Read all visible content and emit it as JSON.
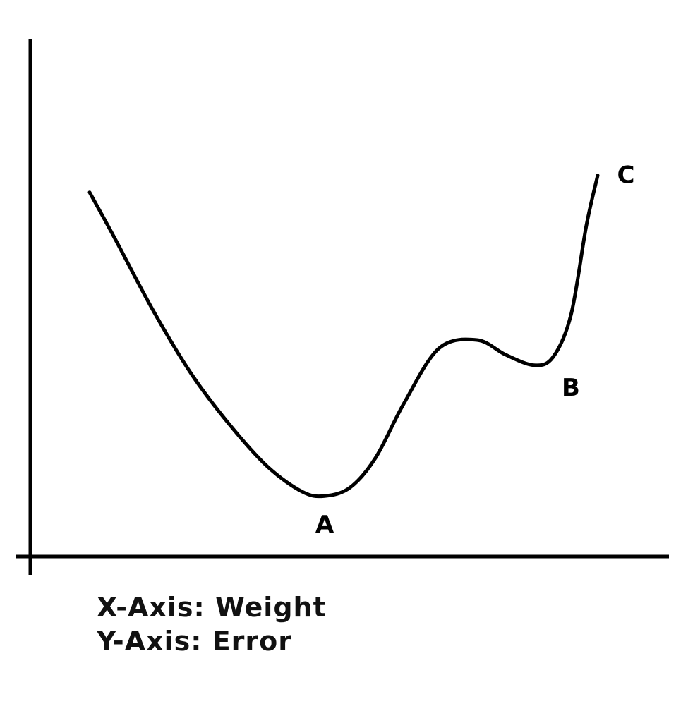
{
  "chart_data": {
    "type": "line",
    "title": "",
    "xlabel": "",
    "ylabel": "",
    "grid": false,
    "legend": "none",
    "line_color": "#000000",
    "series": [
      {
        "x": [
          0.0,
          0.4,
          1.0,
          1.6,
          2.2,
          2.8,
          3.35,
          3.7,
          4.1,
          4.5,
          4.95,
          5.5,
          6.1,
          6.55,
          7.0,
          7.3,
          7.58,
          7.82,
          8.0
        ],
        "y": [
          8.3,
          7.2,
          5.5,
          4.0,
          2.8,
          1.8,
          1.2,
          1.1,
          1.3,
          2.0,
          3.3,
          4.6,
          4.8,
          4.45,
          4.2,
          4.4,
          5.4,
          7.5,
          8.7
        ]
      }
    ],
    "annotations": [
      {
        "label": "A",
        "x": 3.7,
        "y": 1.1,
        "position": "below"
      },
      {
        "label": "B",
        "x": 7.0,
        "y": 4.2,
        "position": "below-right"
      },
      {
        "label": "C",
        "x": 8.0,
        "y": 8.7,
        "position": "right"
      }
    ]
  },
  "captions": {
    "x_axis": "X-Axis: Weight",
    "y_axis": "Y-Axis: Error"
  }
}
